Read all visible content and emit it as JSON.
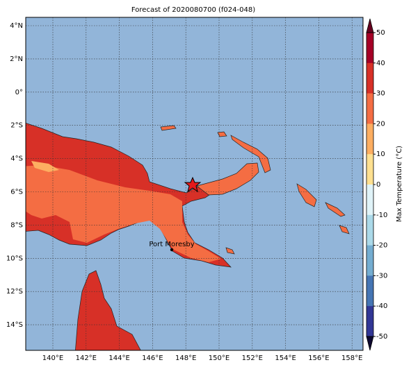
{
  "map": {
    "title": "Forecast of 2020080700 (f024-048)",
    "lon_labels": [
      "140°E",
      "142°E",
      "144°E",
      "146°E",
      "148°E",
      "150°E",
      "152°E",
      "154°E",
      "156°E",
      "158°E"
    ],
    "lat_labels": [
      "4°N",
      "2°N",
      "0°",
      "2°S",
      "4°S",
      "6°S",
      "8°S",
      "10°S",
      "12°S",
      "14°S"
    ],
    "place_label": "Port Moresby",
    "colorbar": {
      "label": "Max Temperature (°C)",
      "ticks": [
        50,
        40,
        30,
        20,
        10,
        0,
        -10,
        -20,
        -30,
        -40,
        -50
      ],
      "colors": [
        "#a50026",
        "#d73027",
        "#f46d43",
        "#fdae61",
        "#fee090",
        "#e0f3f8",
        "#abd9e9",
        "#74add1",
        "#4575b4",
        "#313695"
      ]
    }
  }
}
